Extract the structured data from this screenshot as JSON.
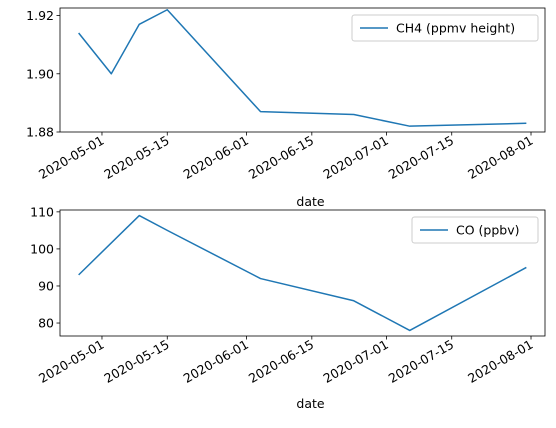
{
  "chart_data": [
    {
      "type": "line",
      "xlabel": "date",
      "ylabel": "",
      "ylim": [
        1.88,
        1.9226
      ],
      "xlim": [
        "2020-04-22",
        "2020-08-04"
      ],
      "yticks": [
        1.88,
        1.9,
        1.92
      ],
      "ytick_labels": [
        "1.88",
        "1.90",
        "1.92"
      ],
      "xticks": [
        "2020-05-01",
        "2020-05-15",
        "2020-06-01",
        "2020-06-15",
        "2020-07-01",
        "2020-07-15",
        "2020-08-01"
      ],
      "grid": false,
      "legend_position": "top-right",
      "series": [
        {
          "name": "CH4 (ppmv height)",
          "color": "#1f77b4",
          "x": [
            "2020-04-26",
            "2020-05-03",
            "2020-05-09",
            "2020-05-15",
            "2020-06-04",
            "2020-06-24",
            "2020-07-06",
            "2020-07-31"
          ],
          "y": [
            1.914,
            1.9,
            1.917,
            1.922,
            1.887,
            1.886,
            1.882,
            1.883
          ]
        }
      ]
    },
    {
      "type": "line",
      "xlabel": "date",
      "ylabel": "",
      "ylim": [
        76.5,
        110.5
      ],
      "xlim": [
        "2020-04-22",
        "2020-08-04"
      ],
      "yticks": [
        80,
        90,
        100,
        110
      ],
      "ytick_labels": [
        "80",
        "90",
        "100",
        "110"
      ],
      "xticks": [
        "2020-05-01",
        "2020-05-15",
        "2020-06-01",
        "2020-06-15",
        "2020-07-01",
        "2020-07-15",
        "2020-08-01"
      ],
      "grid": false,
      "legend_position": "top-right",
      "series": [
        {
          "name": "CO (ppbv)",
          "color": "#1f77b4",
          "x": [
            "2020-04-26",
            "2020-05-09",
            "2020-05-15",
            "2020-06-04",
            "2020-06-24",
            "2020-07-06",
            "2020-07-31"
          ],
          "y": [
            93,
            109,
            105,
            92,
            86,
            78,
            95
          ]
        }
      ]
    }
  ]
}
